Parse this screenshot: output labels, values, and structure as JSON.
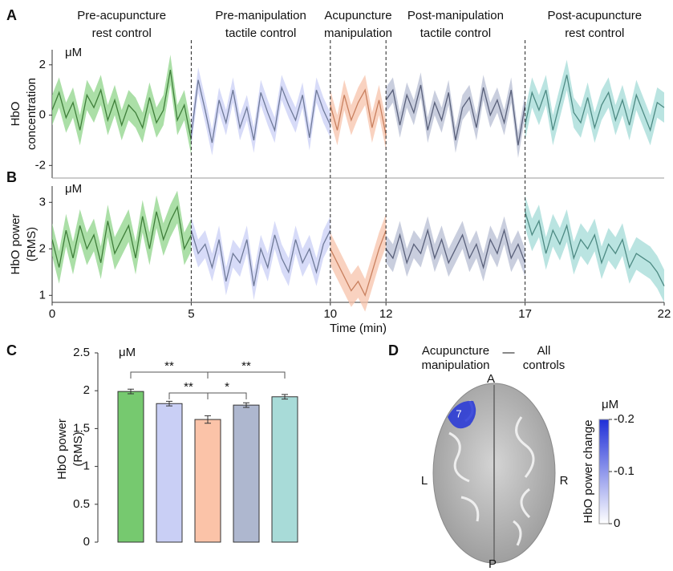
{
  "chart_data": [
    {
      "type": "timeseries",
      "panel_label": "A",
      "unit": "μM",
      "ylabel": [
        "HbO",
        "concentration"
      ],
      "xlim": [
        0,
        22
      ],
      "ylim": [
        -2.5,
        2.6
      ],
      "yticks": [
        -2,
        0,
        2
      ],
      "series": [
        {
          "name": [
            "Pre-acupuncture",
            "rest control"
          ],
          "color": "#3f7f3a",
          "band_color": "#8fd48a",
          "error": 0.6,
          "x": [
            0,
            0.25,
            0.5,
            0.75,
            1,
            1.25,
            1.5,
            1.75,
            2,
            2.25,
            2.5,
            2.75,
            3,
            3.25,
            3.5,
            3.75,
            4,
            4.25,
            4.5,
            4.75,
            5
          ],
          "values": [
            0.2,
            0.9,
            -0.1,
            0.5,
            -0.6,
            0.8,
            0.3,
            1.0,
            -0.2,
            0.6,
            -0.4,
            0.4,
            0.1,
            -0.5,
            0.7,
            -0.3,
            0.2,
            1.8,
            -0.2,
            0.4,
            -1.0
          ]
        },
        {
          "name": [
            "Pre-manipulation",
            "tactile control"
          ],
          "color": "#6f7a99",
          "band_color": "#c9cff5",
          "error": 0.5,
          "x": [
            5,
            5.25,
            5.5,
            5.75,
            6,
            6.25,
            6.5,
            6.75,
            7,
            7.25,
            7.5,
            7.75,
            8,
            8.25,
            8.5,
            8.75,
            9,
            9.25,
            9.5,
            9.75,
            10
          ],
          "values": [
            -0.8,
            1.4,
            0.2,
            -1.1,
            0.6,
            -0.3,
            1.0,
            -0.5,
            0.3,
            -1.0,
            0.9,
            0.1,
            -0.6,
            1.1,
            0.4,
            -0.2,
            0.8,
            -0.9,
            1.0,
            0.2,
            -0.4
          ]
        },
        {
          "name": [
            "Acupuncture",
            "manipulation"
          ],
          "color": "#c9805f",
          "band_color": "#f7c3ab",
          "error": 0.6,
          "x": [
            10,
            10.25,
            10.5,
            10.75,
            11,
            11.25,
            11.5,
            11.75,
            12
          ],
          "values": [
            0.4,
            -0.6,
            0.8,
            -0.2,
            0.5,
            1.0,
            -0.5,
            0.6,
            -0.8
          ]
        },
        {
          "name": [
            "Post-manipulation",
            "tactile control"
          ],
          "color": "#59607a",
          "band_color": "#b7bdd3",
          "error": 0.5,
          "x": [
            12,
            12.25,
            12.5,
            12.75,
            13,
            13.25,
            13.5,
            13.75,
            14,
            14.25,
            14.5,
            14.75,
            15,
            15.25,
            15.5,
            15.75,
            16,
            16.25,
            16.5,
            16.75,
            17
          ],
          "values": [
            0.6,
            1.0,
            -0.4,
            0.8,
            0.1,
            1.2,
            -0.6,
            0.5,
            -0.2,
            0.9,
            -1.0,
            0.3,
            0.7,
            -0.5,
            1.1,
            0.0,
            0.6,
            -0.3,
            1.0,
            -1.2,
            0.4
          ]
        },
        {
          "name": [
            "Post-acupuncture",
            "rest control"
          ],
          "color": "#4d8a83",
          "band_color": "#a3dbd7",
          "error": 0.6,
          "x": [
            17,
            17.25,
            17.5,
            17.75,
            18,
            18.25,
            18.5,
            18.75,
            19,
            19.25,
            19.5,
            19.75,
            20,
            20.25,
            20.5,
            20.75,
            21,
            21.25,
            21.5,
            21.75,
            22
          ],
          "values": [
            -0.4,
            0.9,
            0.2,
            1.0,
            -0.6,
            0.5,
            1.6,
            0.1,
            -0.3,
            0.7,
            -0.5,
            0.4,
            0.9,
            -0.2,
            0.6,
            -0.4,
            0.8,
            0.1,
            -0.6,
            0.5,
            0.3
          ]
        }
      ]
    },
    {
      "type": "timeseries",
      "panel_label": "B",
      "unit": "μM",
      "ylabel": [
        "HbO power",
        "(RMS)"
      ],
      "xlabel": "Time (min)",
      "xlim": [
        0,
        22
      ],
      "xticks": [
        0,
        5,
        10,
        12,
        17,
        22
      ],
      "ylim": [
        0.85,
        3.35
      ],
      "yticks": [
        1,
        2,
        3
      ],
      "series": [
        {
          "color": "#3f7f3a",
          "band_color": "#8fd48a",
          "error": 0.35,
          "x": [
            0,
            0.25,
            0.5,
            0.75,
            1,
            1.25,
            1.5,
            1.75,
            2,
            2.25,
            2.5,
            2.75,
            3,
            3.25,
            3.5,
            3.75,
            4,
            4.25,
            4.5,
            4.75,
            5
          ],
          "values": [
            2.2,
            1.6,
            2.4,
            1.8,
            2.5,
            2.0,
            2.3,
            1.7,
            2.6,
            1.9,
            2.2,
            2.5,
            1.8,
            2.7,
            2.0,
            2.8,
            2.2,
            2.6,
            2.9,
            2.0,
            2.3
          ]
        },
        {
          "color": "#6f7a99",
          "band_color": "#c9cff5",
          "error": 0.3,
          "x": [
            5,
            5.25,
            5.5,
            5.75,
            6,
            6.25,
            6.5,
            6.75,
            7,
            7.25,
            7.5,
            7.75,
            8,
            8.25,
            8.5,
            8.75,
            9,
            9.25,
            9.5,
            9.75,
            10
          ],
          "values": [
            2.4,
            1.9,
            2.1,
            1.6,
            2.2,
            1.3,
            1.9,
            1.7,
            2.2,
            1.2,
            2.0,
            1.6,
            2.3,
            1.8,
            1.5,
            2.2,
            1.7,
            2.0,
            1.5,
            2.1,
            2.4
          ]
        },
        {
          "color": "#c9805f",
          "band_color": "#f7c3ab",
          "error": 0.35,
          "x": [
            10,
            10.25,
            10.5,
            10.75,
            11,
            11.25,
            11.5,
            11.75,
            12
          ],
          "values": [
            2.0,
            1.7,
            1.4,
            1.1,
            1.3,
            1.0,
            1.5,
            2.0,
            2.4
          ]
        },
        {
          "color": "#59607a",
          "band_color": "#b7bdd3",
          "error": 0.3,
          "x": [
            12,
            12.25,
            12.5,
            12.75,
            13,
            13.25,
            13.5,
            13.75,
            14,
            14.25,
            14.5,
            14.75,
            15,
            15.25,
            15.5,
            15.75,
            16,
            16.25,
            16.5,
            16.75,
            17
          ],
          "values": [
            2.0,
            1.8,
            2.3,
            1.7,
            2.1,
            1.9,
            2.4,
            1.8,
            2.2,
            1.7,
            2.0,
            2.3,
            1.8,
            2.1,
            1.6,
            2.2,
            1.9,
            2.4,
            1.8,
            2.1,
            1.7
          ]
        },
        {
          "color": "#4d8a83",
          "band_color": "#a3dbd7",
          "error": 0.35,
          "x": [
            17,
            17.25,
            17.5,
            17.75,
            18,
            18.25,
            18.5,
            18.75,
            19,
            19.25,
            19.5,
            19.75,
            20,
            20.25,
            20.5,
            20.75,
            21,
            21.25,
            21.5,
            21.75,
            22
          ],
          "values": [
            2.8,
            2.3,
            2.6,
            1.9,
            2.4,
            2.1,
            2.5,
            1.8,
            2.2,
            2.0,
            2.3,
            1.7,
            2.1,
            1.9,
            2.2,
            1.6,
            1.9,
            1.8,
            1.7,
            1.5,
            1.2
          ]
        }
      ]
    },
    {
      "type": "bar",
      "panel_label": "C",
      "unit": "μM",
      "ylabel": [
        "HbO power",
        "(RMS)"
      ],
      "ylim": [
        0,
        2.5
      ],
      "yticks": [
        0,
        0.5,
        1,
        1.5,
        2,
        2.5
      ],
      "values": [
        1.99,
        1.83,
        1.62,
        1.81,
        1.92
      ],
      "errors": [
        0.03,
        0.03,
        0.05,
        0.03,
        0.03
      ],
      "colors": [
        "#76c96f",
        "#c9cff5",
        "#fbc3a8",
        "#aeb7cf",
        "#a8dbd8"
      ],
      "significance": [
        {
          "from": 0,
          "to": 2,
          "label": "**"
        },
        {
          "from": 2,
          "to": 4,
          "label": "**"
        },
        {
          "from": 1,
          "to": 2,
          "label": "**"
        },
        {
          "from": 2,
          "to": 3,
          "label": "*"
        }
      ]
    },
    {
      "type": "brain_map",
      "panel_label": "D",
      "title_left": [
        "Acupuncture",
        "manipulation"
      ],
      "separator": "—",
      "title_right": [
        "All",
        "controls"
      ],
      "orientation": {
        "anterior": "A",
        "posterior": "P",
        "left": "L",
        "right": "R"
      },
      "channel": "7",
      "colorbar": {
        "unit": "μM",
        "label": "HbO power change",
        "lim": [
          -0.2,
          0
        ],
        "ticks": [
          -0.2,
          -0.1,
          0
        ],
        "color": "#1f2fd8"
      }
    }
  ]
}
